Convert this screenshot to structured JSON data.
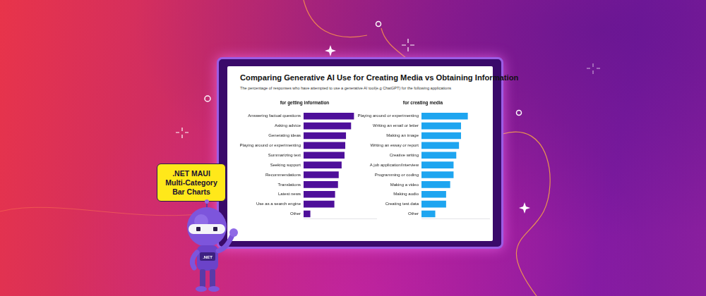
{
  "header": {
    "title": "Comparing Generative AI Use for Creating Media vs Obtaining Information",
    "subtitle": "The percentage of responses who have attempted to use a generative AI tool(e.g ChatGPT) for the following applications"
  },
  "banner": {
    "label": ".NET MAUI Multi-Category Bar Charts",
    "badge": ".NET"
  },
  "chart_data": [
    {
      "type": "bar",
      "orientation": "horizontal",
      "title": "for getting information",
      "categories": [
        "Answering factual questions",
        "Asking advice",
        "Generating ideas",
        "Playing around or experimenting",
        "Summarizing text",
        "Seeking support",
        "Recommendations",
        "Translations",
        "Latest news",
        "Use as a search engine",
        "Other"
      ],
      "values": [
        69,
        65,
        58,
        57,
        56,
        52,
        48,
        47,
        43,
        42,
        9
      ],
      "color": "#4e0f9a",
      "xlim": [
        0,
        100
      ],
      "grid": false,
      "tick_labels": "y"
    },
    {
      "type": "bar",
      "orientation": "horizontal",
      "title": "for creating media",
      "categories": [
        "Playing around or experimenting",
        "Writing an email or letter",
        "Making an image",
        "Writing an essay or report",
        "Creative writing",
        "A job application/interview",
        "Programming or coding",
        "Making a video",
        "Making audio",
        "Creating test data",
        "Other"
      ],
      "values": [
        68,
        58,
        58,
        55,
        51,
        47,
        47,
        42,
        36,
        36,
        20
      ],
      "color": "#1ea5f0",
      "xlim": [
        0,
        100
      ],
      "grid": false,
      "tick_labels": "y"
    }
  ]
}
